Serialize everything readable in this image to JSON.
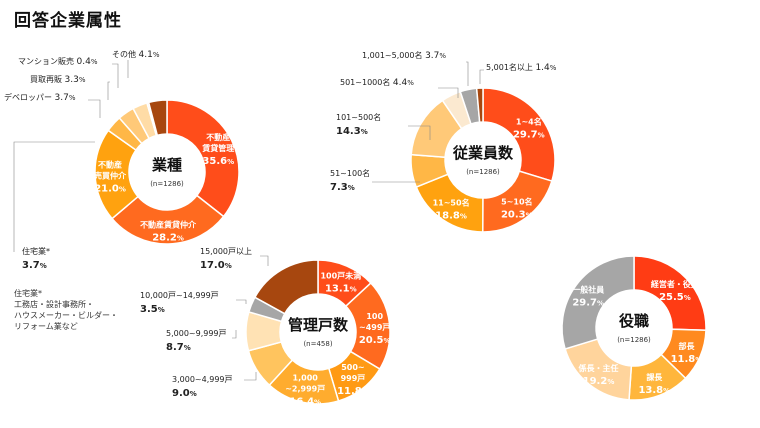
{
  "page_title": "回答企業属性",
  "footnote": "住宅業*\n工務店・設計事務所・\nハウスメーカー・ビルダー・\nリフォーム業など",
  "chart_data": [
    {
      "id": "industry",
      "type": "pie",
      "title": "業種",
      "n_label": "(n=1286)",
      "slices": [
        {
          "name": "不動産賃貸管理",
          "label_lines": [
            "不動産",
            "賃貸管理"
          ],
          "value": 35.6,
          "color": "#ff4d1a"
        },
        {
          "name": "不動産賃貸仲介",
          "label_lines": [
            "不動産賃貸仲介"
          ],
          "value": 28.2,
          "color": "#ff6a1f"
        },
        {
          "name": "不動産売買仲介",
          "label_lines": [
            "不動産",
            "売買仲介"
          ],
          "value": 21.0,
          "color": "#ffa20f"
        },
        {
          "name": "住宅業*",
          "label_lines": [
            "住宅業*"
          ],
          "value": 3.7,
          "color": "#ffb746"
        },
        {
          "name": "デベロッパー",
          "label_lines": [
            "デベロッパー"
          ],
          "value": 3.7,
          "color": "#ffc978"
        },
        {
          "name": "買取再販",
          "label_lines": [
            "買取再販"
          ],
          "value": 3.3,
          "color": "#ffdca6"
        },
        {
          "name": "マンション販売",
          "label_lines": [
            "マンション販売"
          ],
          "value": 0.4,
          "color": "#f4e6cf"
        },
        {
          "name": "その他",
          "label_lines": [
            "その他"
          ],
          "value": 4.1,
          "color": "#a7470f"
        }
      ]
    },
    {
      "id": "employees",
      "type": "pie",
      "title": "従業員数",
      "n_label": "(n=1286)",
      "slices": [
        {
          "name": "1~4名",
          "label_lines": [
            "1~4名"
          ],
          "value": 29.7,
          "color": "#ff4d1a"
        },
        {
          "name": "5~10名",
          "label_lines": [
            "5~10名"
          ],
          "value": 20.3,
          "color": "#ff6a1f"
        },
        {
          "name": "11~50名",
          "label_lines": [
            "11~50名"
          ],
          "value": 18.8,
          "color": "#ffa20f"
        },
        {
          "name": "51~100名",
          "label_lines": [
            "51~100名"
          ],
          "value": 7.3,
          "color": "#ffb746"
        },
        {
          "name": "101~500名",
          "label_lines": [
            "101~500名"
          ],
          "value": 14.3,
          "color": "#ffc978"
        },
        {
          "name": "501~1000名",
          "label_lines": [
            "501~1000名"
          ],
          "value": 4.4,
          "color": "#fbe9d0"
        },
        {
          "name": "1,001~5,000名",
          "label_lines": [
            "1,001~5,000名"
          ],
          "value": 3.7,
          "color": "#a6a6a6"
        },
        {
          "name": "5,001名以上",
          "label_lines": [
            "5,001名以上"
          ],
          "value": 1.4,
          "color": "#a7470f"
        }
      ]
    },
    {
      "id": "units",
      "type": "pie",
      "title": "管理戸数",
      "n_label": "(n=458)",
      "slices": [
        {
          "name": "100戸未満",
          "label_lines": [
            "100戸未満"
          ],
          "value": 13.1,
          "color": "#ff4d1a"
        },
        {
          "name": "100~499戸",
          "label_lines": [
            "100",
            "~499戸"
          ],
          "value": 20.5,
          "color": "#ff6a1f"
        },
        {
          "name": "500~999戸",
          "label_lines": [
            "500~",
            "999戸"
          ],
          "value": 11.8,
          "color": "#ff9a14"
        },
        {
          "name": "1,000~2,999戸",
          "label_lines": [
            "1,000",
            "~2,999戸"
          ],
          "value": 16.4,
          "color": "#ffac2e"
        },
        {
          "name": "3,000~4,999戸",
          "label_lines": [
            "3,000~4,999戸"
          ],
          "value": 9.0,
          "color": "#ffc45e"
        },
        {
          "name": "5,000~9,999戸",
          "label_lines": [
            "5,000~9,999戸"
          ],
          "value": 8.7,
          "color": "#ffe2b4"
        },
        {
          "name": "10,000戸~14,999戸",
          "label_lines": [
            "10,000戸~14,999戸"
          ],
          "value": 3.5,
          "color": "#a6a6a6"
        },
        {
          "name": "15,000戸以上",
          "label_lines": [
            "15,000戸以上"
          ],
          "value": 17.0,
          "color": "#a7470f"
        }
      ]
    },
    {
      "id": "position",
      "type": "pie",
      "title": "役職",
      "n_label": "(n=1286)",
      "slices": [
        {
          "name": "経営者・役員",
          "label_lines": [
            "経営者・役員"
          ],
          "value": 25.5,
          "color": "#ff3c14"
        },
        {
          "name": "部長",
          "label_lines": [
            "部長"
          ],
          "value": 11.8,
          "color": "#ff8a1f"
        },
        {
          "name": "課長",
          "label_lines": [
            "課長"
          ],
          "value": 13.8,
          "color": "#ffb63c"
        },
        {
          "name": "係長・主任",
          "label_lines": [
            "係長・主任"
          ],
          "value": 19.2,
          "color": "#ffd49c"
        },
        {
          "name": "一般社員",
          "label_lines": [
            "一般社員"
          ],
          "value": 29.7,
          "color": "#a6a6a6"
        }
      ]
    }
  ]
}
